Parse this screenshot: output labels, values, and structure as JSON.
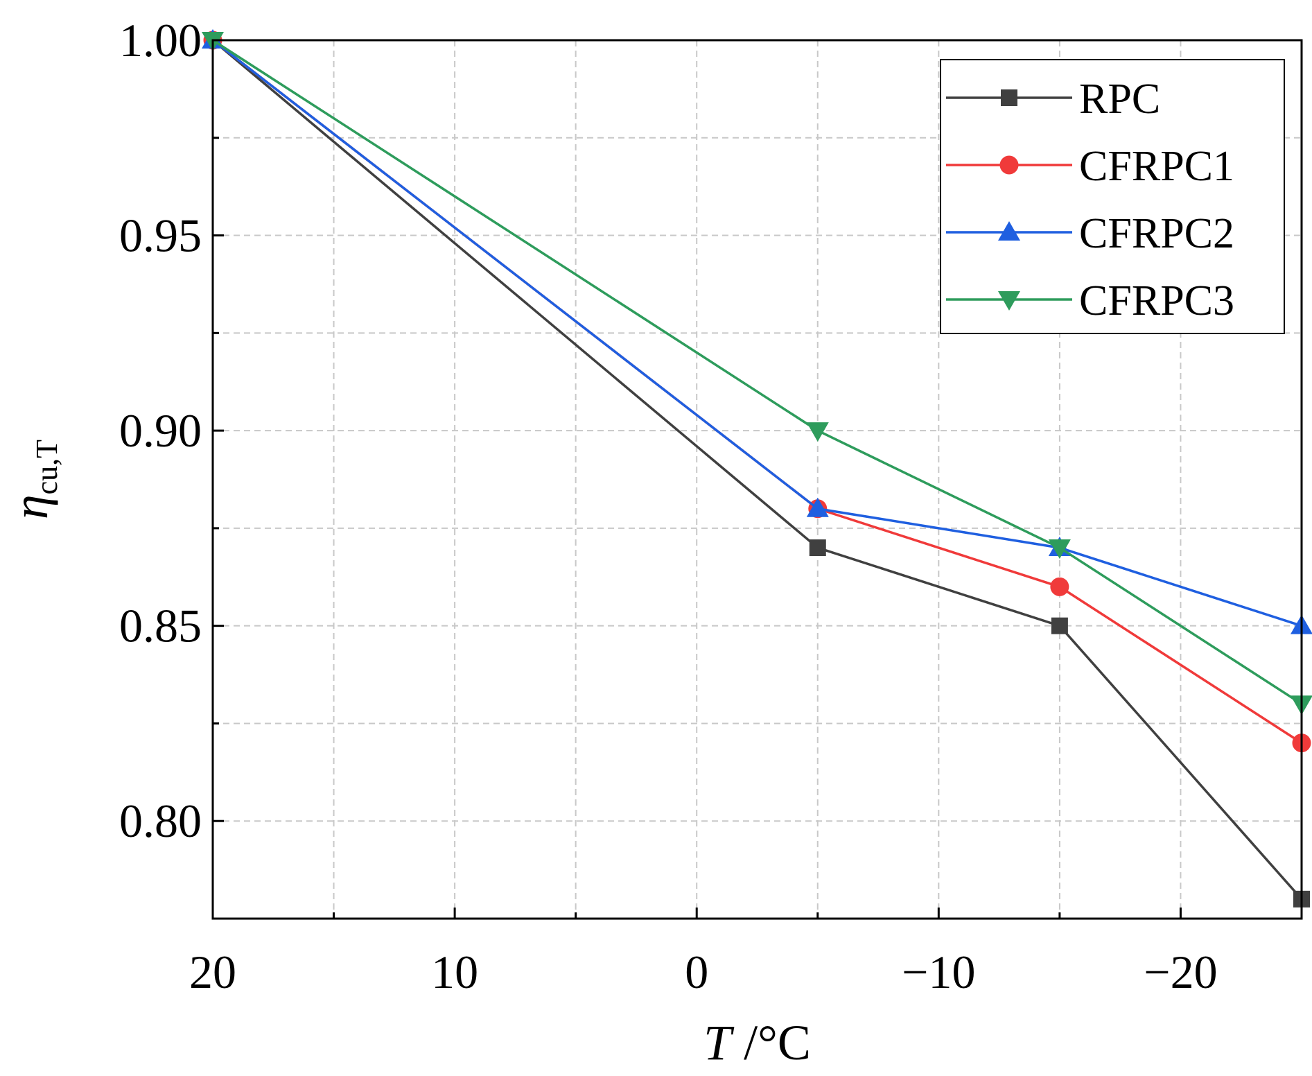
{
  "chart_data": {
    "type": "line",
    "xlabel_italic": "T",
    "xlabel_unit": " /°C",
    "ylabel_symbol": "η",
    "ylabel_subscript": "cu,T",
    "xlim": [
      20,
      -25
    ],
    "ylim": [
      0.775,
      1.0
    ],
    "x_ticks": [
      20,
      10,
      0,
      -10,
      -20
    ],
    "x_tick_labels": [
      "20",
      "10",
      "0",
      "−10",
      "−20"
    ],
    "x_minor_ticks": [
      15,
      5,
      -5,
      -15
    ],
    "y_ticks": [
      0.8,
      0.85,
      0.9,
      0.95,
      1.0
    ],
    "y_tick_labels": [
      "0.80",
      "0.85",
      "0.90",
      "0.95",
      "1.00"
    ],
    "y_minor_ticks": [
      0.825,
      0.875,
      0.925,
      0.975
    ],
    "grid": true,
    "legend_position": "top-right",
    "x": [
      20,
      -5,
      -15,
      -25
    ],
    "series": [
      {
        "name": "RPC",
        "values": [
          1.0,
          0.87,
          0.85,
          0.78
        ],
        "color": "#404040",
        "marker": "square"
      },
      {
        "name": "CFRPC1",
        "values": [
          1.0,
          0.88,
          0.86,
          0.82
        ],
        "color": "#f03a3a",
        "marker": "circle"
      },
      {
        "name": "CFRPC2",
        "values": [
          1.0,
          0.88,
          0.87,
          0.85
        ],
        "color": "#1f5fe0",
        "marker": "triangle-up"
      },
      {
        "name": "CFRPC3",
        "values": [
          1.0,
          0.9,
          0.87,
          0.83
        ],
        "color": "#2e9c5c",
        "marker": "triangle-down"
      }
    ]
  }
}
